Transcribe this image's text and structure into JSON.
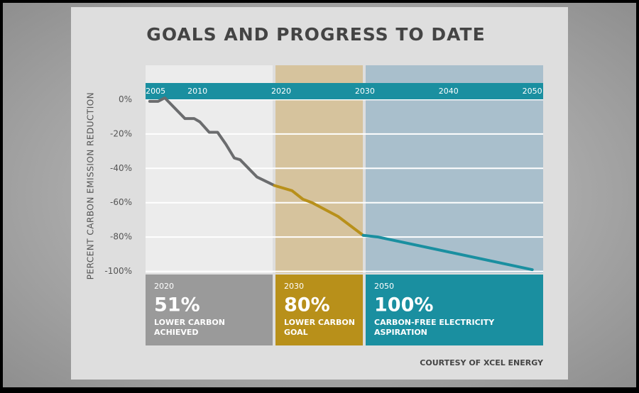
{
  "chart_data": {
    "type": "line",
    "title": "GOALS AND PROGRESS TO DATE",
    "y_label": "PERCENT CARBON EMISSION REDUCTION",
    "source": "COURTESY OF XCEL ENERGY",
    "xlim": [
      2003.8,
      2051.3
    ],
    "xticks": [
      2005,
      2010,
      2020,
      2030,
      2040,
      2050
    ],
    "ylim": [
      -101,
      20
    ],
    "yticks": [
      {
        "value": 0,
        "label": "0%"
      },
      {
        "value": -20,
        "label": "-20%"
      },
      {
        "value": -40,
        "label": "-40%"
      },
      {
        "value": -60,
        "label": "-60%"
      },
      {
        "value": -80,
        "label": "-80%"
      },
      {
        "value": -100,
        "label": "-100%"
      }
    ],
    "grid": true,
    "series": [
      {
        "color": "#6b6c6e",
        "x": [
          2004.3,
          2005.3,
          2006.1,
          2008.5,
          2009.6,
          2010.3,
          2011.4,
          2012.4,
          2013.4,
          2014.4,
          2015.1,
          2017.1,
          2019.2
        ],
        "values": [
          -1,
          -1,
          1,
          -11,
          -11,
          -13,
          -19,
          -19,
          -26,
          -34,
          -35,
          -45,
          -50
        ]
      },
      {
        "color": "#b8901a",
        "x": [
          2019.2,
          2021.3,
          2022.6,
          2023.7,
          2026.8,
          2029.8
        ],
        "values": [
          -50,
          -53,
          -58,
          -60,
          -68,
          -79
        ]
      },
      {
        "color": "#1a8fa0",
        "x": [
          2029.8,
          2031.6,
          2050
        ],
        "values": [
          -79,
          -80,
          -99
        ]
      }
    ],
    "annotations": [
      {
        "year": "2020",
        "value": "51%",
        "label_lines": [
          "LOWER CARBON",
          "ACHIEVED"
        ]
      },
      {
        "year": "2030",
        "value": "80%",
        "label_lines": [
          "LOWER CARBON",
          "GOAL"
        ]
      },
      {
        "year": "2050",
        "value": "100%",
        "label_lines": [
          "CARBON-FREE ELECTRICITY",
          "ASPIRATION"
        ]
      }
    ]
  }
}
